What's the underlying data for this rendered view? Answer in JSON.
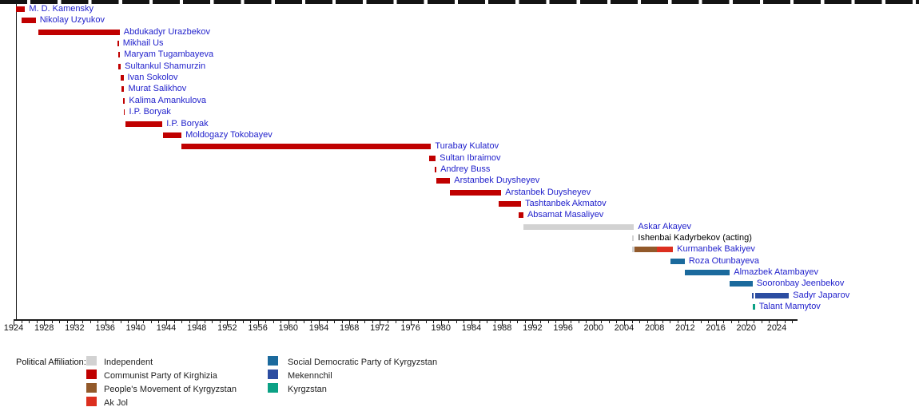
{
  "chart_data": {
    "type": "bar",
    "variant": "gantt-timeline",
    "title": "",
    "xlabel": "",
    "ylabel": "",
    "grid": false,
    "x_axis": {
      "start": 1924,
      "end": 2026.7,
      "major_tick_interval": 4,
      "minor_tick_interval": 1,
      "tick_labels": [
        1924,
        1928,
        1932,
        1936,
        1940,
        1944,
        1948,
        1952,
        1956,
        1960,
        1964,
        1968,
        1972,
        1976,
        1980,
        1984,
        1988,
        1992,
        1996,
        2000,
        2004,
        2008,
        2012,
        2016,
        2020,
        2024
      ]
    },
    "palette": {
      "independent": "#d2d2d2",
      "communist": "#c00000",
      "pmk": "#92592a",
      "akjol": "#dc2f1f",
      "sdpk": "#1b6a9d",
      "mekenchil": "#2c4da1",
      "kyrgyzstan": "#0ba185"
    },
    "link_color": "#2222cc",
    "rows": [
      {
        "name": "M. D. Kamensky",
        "link": true,
        "segments": [
          {
            "party": "communist",
            "start": 1924.3,
            "end": 1925.5
          }
        ]
      },
      {
        "name": "Nikolay Uzyukov",
        "link": true,
        "segments": [
          {
            "party": "communist",
            "start": 1925.0,
            "end": 1926.9
          }
        ]
      },
      {
        "name": "Abdukadyr Urazbekov",
        "link": true,
        "segments": [
          {
            "party": "communist",
            "start": 1927.2,
            "end": 1937.9
          }
        ]
      },
      {
        "name": "Mikhail Us",
        "link": true,
        "segments": [
          {
            "party": "communist",
            "start": 1937.6,
            "end": 1937.8
          }
        ]
      },
      {
        "name": "Maryam Tugambayeva",
        "link": true,
        "segments": [
          {
            "party": "communist",
            "start": 1937.75,
            "end": 1937.95
          }
        ]
      },
      {
        "name": "Sultankul Shamurzin",
        "link": true,
        "segments": [
          {
            "party": "communist",
            "start": 1937.7,
            "end": 1938.05
          }
        ]
      },
      {
        "name": "Ivan Sokolov",
        "link": true,
        "segments": [
          {
            "party": "communist",
            "start": 1938.0,
            "end": 1938.4
          }
        ]
      },
      {
        "name": "Murat Salikhov",
        "link": true,
        "segments": [
          {
            "party": "communist",
            "start": 1938.15,
            "end": 1938.5
          }
        ]
      },
      {
        "name": "Kalima Amankulova",
        "link": true,
        "segments": [
          {
            "party": "communist",
            "start": 1938.3,
            "end": 1938.6
          }
        ]
      },
      {
        "name": "I.P. Boryak",
        "link": true,
        "segments": [
          {
            "party": "communist",
            "start": 1938.45,
            "end": 1938.6
          }
        ]
      },
      {
        "name": "I.P. Boryak",
        "link": true,
        "segments": [
          {
            "party": "communist",
            "start": 1938.7,
            "end": 1943.5
          }
        ]
      },
      {
        "name": "Moldogazy Tokobayev",
        "link": true,
        "segments": [
          {
            "party": "communist",
            "start": 1943.6,
            "end": 1946.0
          }
        ]
      },
      {
        "name": "Turabay Kulatov",
        "link": true,
        "segments": [
          {
            "party": "communist",
            "start": 1946.0,
            "end": 1978.7
          }
        ]
      },
      {
        "name": "Sultan Ibraimov",
        "link": true,
        "segments": [
          {
            "party": "communist",
            "start": 1978.5,
            "end": 1979.3
          }
        ]
      },
      {
        "name": "Andrey Buss",
        "link": true,
        "segments": [
          {
            "party": "communist",
            "start": 1979.2,
            "end": 1979.4
          }
        ]
      },
      {
        "name": "Arstanbek Duysheyev",
        "link": true,
        "segments": [
          {
            "party": "communist",
            "start": 1979.4,
            "end": 1981.2
          }
        ]
      },
      {
        "name": "Arstanbek Duysheyev",
        "link": true,
        "segments": [
          {
            "party": "communist",
            "start": 1981.2,
            "end": 1987.9
          }
        ]
      },
      {
        "name": "Tashtanbek Akmatov",
        "link": true,
        "segments": [
          {
            "party": "communist",
            "start": 1987.6,
            "end": 1990.5
          }
        ]
      },
      {
        "name": "Absamat Masaliyev",
        "link": true,
        "segments": [
          {
            "party": "communist",
            "start": 1990.2,
            "end": 1990.8
          }
        ]
      },
      {
        "name": "Askar Akayev",
        "link": true,
        "segments": [
          {
            "party": "independent",
            "start": 1990.8,
            "end": 2005.3
          }
        ]
      },
      {
        "name": "Ishenbai Kadyrbekov (acting)",
        "link": false,
        "segments": [
          {
            "party": "independent",
            "start": 2005.05,
            "end": 2005.3
          }
        ]
      },
      {
        "name": "Kurmanbek Bakiyev",
        "link": true,
        "segments": [
          {
            "party": "independent",
            "start": 2005.05,
            "end": 2005.4
          },
          {
            "party": "pmk",
            "start": 2005.4,
            "end": 2008.3
          },
          {
            "party": "akjol",
            "start": 2008.3,
            "end": 2010.4
          }
        ]
      },
      {
        "name": "Roza Otunbayeva",
        "link": true,
        "segments": [
          {
            "party": "sdpk",
            "start": 2010.1,
            "end": 2011.95
          }
        ]
      },
      {
        "name": "Almazbek Atambayev",
        "link": true,
        "segments": [
          {
            "party": "sdpk",
            "start": 2011.95,
            "end": 2017.85
          }
        ]
      },
      {
        "name": "Sooronbay Jeenbekov",
        "link": true,
        "segments": [
          {
            "party": "sdpk",
            "start": 2017.85,
            "end": 2020.85
          }
        ]
      },
      {
        "name": "Sadyr Japarov",
        "link": true,
        "segments": [
          {
            "party": "mekenchil",
            "start": 2020.8,
            "end": 2021.0
          },
          {
            "party": "mekenchil",
            "start": 2021.2,
            "end": 2025.6
          }
        ]
      },
      {
        "name": "Talant Mamytov",
        "link": true,
        "segments": [
          {
            "party": "kyrgyzstan",
            "start": 2020.9,
            "end": 2021.15
          }
        ]
      }
    ],
    "legend": {
      "title": "Political Affiliation:",
      "position": "bottom-left",
      "columns": [
        [
          {
            "party": "independent",
            "label": "Independent"
          },
          {
            "party": "communist",
            "label": "Communist Party of Kirghizia"
          },
          {
            "party": "pmk",
            "label": "People's Movement of Kyrgyzstan"
          },
          {
            "party": "akjol",
            "label": "Ak Jol"
          }
        ],
        [
          {
            "party": "sdpk",
            "label": "Social Democratic Party of Kyrgyzstan"
          },
          {
            "party": "mekenchil",
            "label": "Mekennchil"
          },
          {
            "party": "kyrgyzstan",
            "label": "Kyrgzstan"
          }
        ]
      ]
    }
  }
}
